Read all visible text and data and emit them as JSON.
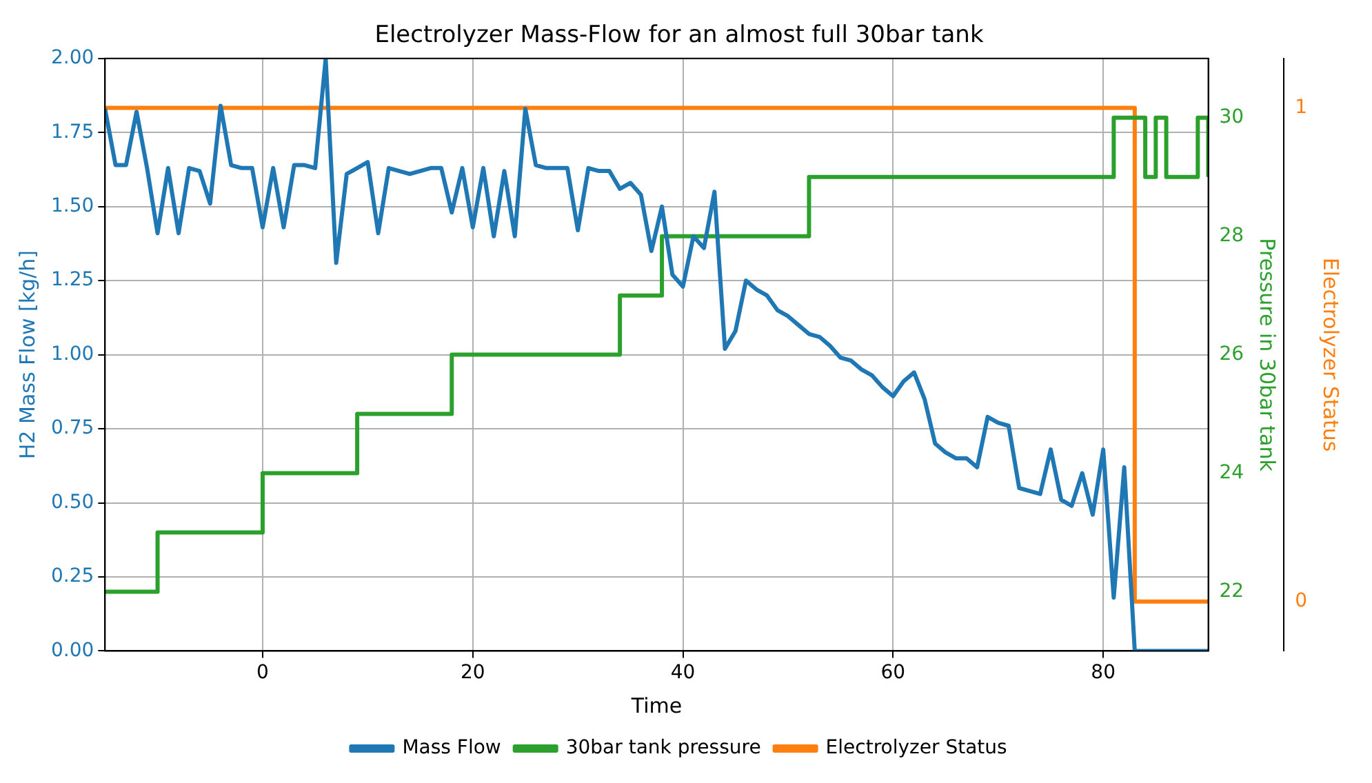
{
  "chart_data": {
    "type": "line",
    "title": "Electrolyzer Mass-Flow for an almost full 30bar tank",
    "xlabel": "Time",
    "ylabel": "H2 Mass Flow [kg/h]",
    "y2label": "Pressure in 30bar tank",
    "y3label": "Electrolyzer Status",
    "xlim": [
      -15,
      90
    ],
    "xticks": [
      0,
      20,
      40,
      60,
      80
    ],
    "ylim": [
      0,
      2
    ],
    "yticks": [
      {
        "value": 0,
        "label": "0.00"
      },
      {
        "value": 0.25,
        "label": "0.25"
      },
      {
        "value": 0.5,
        "label": "0.50"
      },
      {
        "value": 0.75,
        "label": "0.75"
      },
      {
        "value": 1,
        "label": "1.00"
      },
      {
        "value": 1.25,
        "label": "1.25"
      },
      {
        "value": 1.5,
        "label": "1.50"
      },
      {
        "value": 1.75,
        "label": "1.75"
      },
      {
        "value": 2,
        "label": "2.00"
      }
    ],
    "y2lim": [
      21,
      31
    ],
    "y2ticks": [
      22,
      24,
      26,
      28,
      30
    ],
    "y3lim": [
      -0.1,
      1.1
    ],
    "y3ticks": [
      0,
      1
    ],
    "grid": true,
    "legend": "bottom",
    "series": [
      {
        "name": "Mass Flow",
        "type": "line",
        "color": "#1f77b4",
        "x": [
          -15,
          -14,
          -13,
          -12,
          -11,
          -10,
          -9,
          -8,
          -7,
          -6,
          -5,
          -4,
          -3,
          -2,
          -1,
          0,
          1,
          2,
          3,
          4,
          5,
          6,
          7,
          8,
          9,
          10,
          11,
          12,
          13,
          14,
          15,
          16,
          17,
          18,
          19,
          20,
          21,
          22,
          23,
          24,
          25,
          26,
          27,
          28,
          29,
          30,
          31,
          32,
          33,
          34,
          35,
          36,
          37,
          38,
          39,
          40,
          41,
          42,
          43,
          44,
          45,
          46,
          47,
          48,
          49,
          50,
          51,
          52,
          53,
          54,
          55,
          56,
          57,
          58,
          59,
          60,
          61,
          62,
          63,
          64,
          65,
          66,
          67,
          68,
          69,
          70,
          71,
          72,
          73,
          74,
          75,
          76,
          77,
          78,
          79,
          80,
          81,
          82,
          83,
          84,
          85,
          86,
          87,
          88,
          89,
          90
        ],
        "values": [
          1.83,
          1.64,
          1.64,
          1.82,
          1.63,
          1.41,
          1.63,
          1.41,
          1.63,
          1.62,
          1.51,
          1.84,
          1.64,
          1.63,
          1.63,
          1.43,
          1.63,
          1.43,
          1.64,
          1.64,
          1.63,
          2.0,
          1.31,
          1.61,
          1.63,
          1.65,
          1.41,
          1.63,
          1.62,
          1.61,
          1.62,
          1.63,
          1.63,
          1.48,
          1.63,
          1.43,
          1.63,
          1.4,
          1.62,
          1.4,
          1.83,
          1.64,
          1.63,
          1.63,
          1.63,
          1.42,
          1.63,
          1.62,
          1.62,
          1.56,
          1.58,
          1.54,
          1.35,
          1.5,
          1.27,
          1.23,
          1.4,
          1.36,
          1.55,
          1.02,
          1.08,
          1.25,
          1.22,
          1.2,
          1.15,
          1.13,
          1.1,
          1.07,
          1.06,
          1.03,
          0.99,
          0.98,
          0.95,
          0.93,
          0.89,
          0.86,
          0.91,
          0.94,
          0.85,
          0.7,
          0.67,
          0.65,
          0.65,
          0.62,
          0.79,
          0.77,
          0.76,
          0.55,
          0.54,
          0.53,
          0.68,
          0.51,
          0.49,
          0.6,
          0.46,
          0.68,
          0.18,
          0.62,
          0,
          0,
          0,
          0,
          0,
          0,
          0,
          0
        ]
      },
      {
        "name": "30bar tank pressure",
        "type": "step",
        "axis": "y2",
        "color": "#2ca02c",
        "x": [
          -15,
          -10,
          0,
          9,
          18,
          34,
          38,
          52,
          81,
          84,
          85,
          86,
          89,
          90
        ],
        "values": [
          22,
          23,
          24,
          25,
          26,
          27,
          28,
          29,
          30,
          29,
          30,
          29,
          30,
          29
        ]
      },
      {
        "name": "Electrolyzer Status",
        "type": "step",
        "axis": "y3",
        "color": "#ff7f0e",
        "x": [
          -15,
          83,
          90
        ],
        "values": [
          1,
          0,
          0
        ]
      }
    ]
  }
}
